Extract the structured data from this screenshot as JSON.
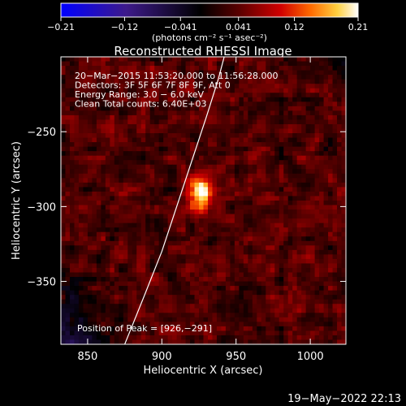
{
  "chart_data": {
    "type": "heatmap",
    "title": "Reconstructed RHESSI Image",
    "xlabel": "Heliocentric X (arcsec)",
    "ylabel": "Heliocentric Y (arcsec)",
    "xlim": [
      832,
      1024
    ],
    "ylim": [
      -392,
      -200
    ],
    "x_ticks": [
      850,
      900,
      950,
      1000
    ],
    "x_tick_labels": [
      "850",
      "900",
      "950",
      "1000"
    ],
    "y_ticks": [
      -250,
      -300,
      -350
    ],
    "y_tick_labels": [
      "−250",
      "−300",
      "−350"
    ],
    "colorbar": {
      "range": [
        -0.21,
        0.21
      ],
      "ticks": [
        -0.21,
        -0.12,
        -0.041,
        0.041,
        0.12,
        0.21
      ],
      "tick_labels": [
        "−0.21",
        "−0.12",
        "−0.041",
        "0.041",
        "0.12",
        "0.21"
      ],
      "unit_label": "(photons cm⁻² s⁻¹ asec⁻²)",
      "colors": [
        "#0000ff",
        "#3d1a8a",
        "#000000",
        "#5a0000",
        "#d10000",
        "#ff6a00",
        "#ffd040",
        "#ffffff"
      ]
    },
    "annotations": [
      "20−Mar−2015 11:53:20.000 to 11:56:28.000",
      "Detectors: 3F 5F 6F 7F 8F 9F, Att 0",
      "Energy Range: 3.0 − 6.0 keV",
      "Clean     Total counts: 6.40E+03"
    ],
    "peak_label": "Position of Peak = [926,−291]",
    "peak": [
      926,
      -291
    ],
    "limb_curve": [
      [
        875,
        -392
      ],
      [
        888,
        -360
      ],
      [
        900,
        -330
      ],
      [
        910,
        -300
      ],
      [
        920,
        -270
      ],
      [
        930,
        -240
      ],
      [
        938,
        -215
      ],
      [
        942,
        -200
      ]
    ],
    "timestamp": "19−May−2022 22:13"
  }
}
